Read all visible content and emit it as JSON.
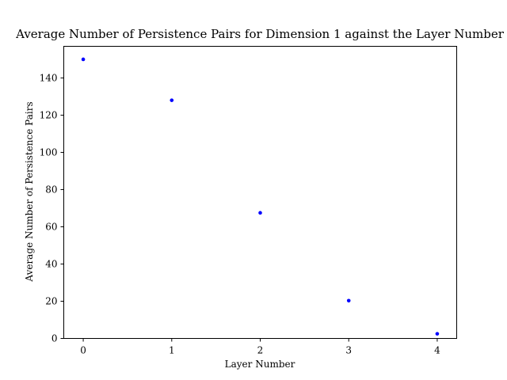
{
  "chart_data": {
    "type": "scatter",
    "title": "Average Number of Persistence Pairs for Dimension 1 against the Layer Number",
    "xlabel": "Layer Number",
    "ylabel": "Average Number of Persistence Pairs",
    "x": [
      0,
      1,
      2,
      3,
      4
    ],
    "y": [
      150,
      128,
      67.5,
      20.3,
      2.5
    ],
    "xlim": [
      -0.22,
      4.22
    ],
    "ylim": [
      0,
      157
    ],
    "xticks": [
      0,
      1,
      2,
      3,
      4
    ],
    "yticks": [
      0,
      20,
      40,
      60,
      80,
      100,
      120,
      140
    ],
    "marker_color": "#0000ff",
    "grid": false,
    "legend": false
  }
}
